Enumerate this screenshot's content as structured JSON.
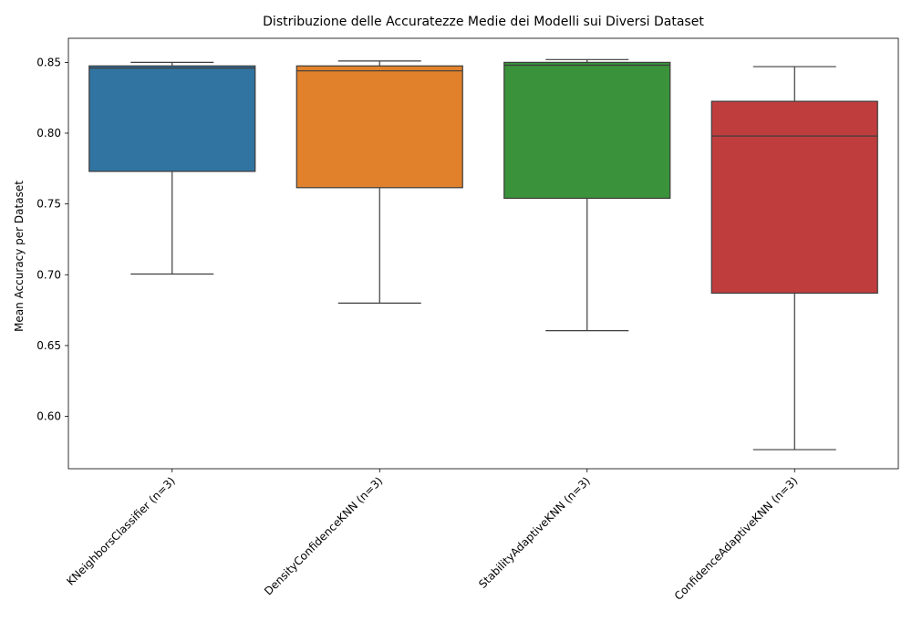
{
  "chart_data": {
    "type": "box",
    "title": "Distribuzione delle Accuratezze Medie dei Modelli sui Diversi Dataset",
    "xlabel": "",
    "ylabel": "Mean Accuracy per Dataset",
    "ylim": [
      0.563,
      0.867
    ],
    "yticks": [
      0.6,
      0.65,
      0.7,
      0.75,
      0.8,
      0.85
    ],
    "ytick_labels": [
      "0.60",
      "0.65",
      "0.70",
      "0.75",
      "0.80",
      "0.85"
    ],
    "categories": [
      "KNeighborsClassifier (n=3)",
      "DensityConfidenceKNN (n=3)",
      "StabilityAdaptiveKNN (n=3)",
      "ConfidenceAdaptiveKNN (n=3)"
    ],
    "boxes": [
      {
        "whisker_low": 0.7005,
        "q1": 0.773,
        "median": 0.846,
        "q3": 0.8475,
        "whisker_high": 0.85,
        "color": "#3274a1"
      },
      {
        "whisker_low": 0.68,
        "q1": 0.7615,
        "median": 0.844,
        "q3": 0.8475,
        "whisker_high": 0.851,
        "color": "#e1812c"
      },
      {
        "whisker_low": 0.6605,
        "q1": 0.754,
        "median": 0.848,
        "q3": 0.85,
        "whisker_high": 0.852,
        "color": "#3a923a"
      },
      {
        "whisker_low": 0.5765,
        "q1": 0.687,
        "median": 0.798,
        "q3": 0.8225,
        "whisker_high": 0.847,
        "color": "#c03d3e"
      }
    ],
    "grid": false,
    "legend": "none"
  }
}
